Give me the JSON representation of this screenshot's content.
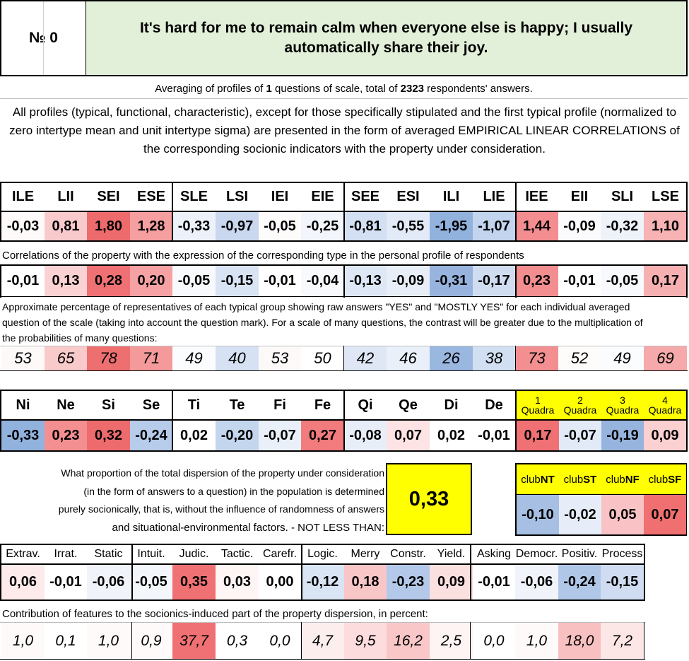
{
  "header": {
    "number_label": "№ 0",
    "question": "It's hard for me to remain calm when everyone else is happy; I usually automatically share their joy."
  },
  "averaging": {
    "prefix": "Averaging of profiles of ",
    "questions": "1",
    "middle": " questions of scale, total of ",
    "respondents": "2323",
    "suffix": " respondents' answers."
  },
  "intro_text": "All profiles (typical, functional, characteristic), except for those specifically stipulated and the first typical profile (normalized to zero intertype mean and unit intertype sigma) are presented in the form of averaged EMPIRICAL LINEAR CORRELATIONS of the corresponding socionic indicators with the property under consideration.",
  "types": {
    "labels": [
      "ILE",
      "LII",
      "SEI",
      "ESE",
      "SLE",
      "LSI",
      "IEI",
      "EIE",
      "SEE",
      "ESI",
      "ILI",
      "LIE",
      "IEE",
      "EII",
      "SLI",
      "LSE"
    ],
    "profile": [
      "-0,03",
      "0,81",
      "1,80",
      "1,28",
      "-0,33",
      "-0,97",
      "-0,05",
      "-0,25",
      "-0,81",
      "-0,55",
      "-1,95",
      "-1,07",
      "1,44",
      "-0,09",
      "-0,32",
      "1,10"
    ],
    "profile_colors": [
      "#fdfaf9",
      "#f9cacc",
      "#ee6b6d",
      "#f59fa1",
      "#edf2fa",
      "#c9d7ef",
      "#fefbfb",
      "#f2f5fb",
      "#d3e0f3",
      "#e1eaf6",
      "#92b2de",
      "#c3d4ee",
      "#f48d90",
      "#fbfbfd",
      "#eef3fa",
      "#f7b2b4"
    ],
    "correlation_caption": "Correlations of the property with the expression of the corresponding type in the personal profile of respondents",
    "correlation": [
      "-0,01",
      "0,13",
      "0,28",
      "0,20",
      "-0,05",
      "-0,15",
      "-0,01",
      "-0,04",
      "-0,13",
      "-0,09",
      "-0,31",
      "-0,17",
      "0,23",
      "-0,01",
      "-0,05",
      "0,17"
    ],
    "correlation_colors": [
      "#ffffff",
      "#fbd2d3",
      "#f07173",
      "#f6a1a3",
      "#f7f9fd",
      "#d8e3f3",
      "#ffffff",
      "#f7f9fd",
      "#dde7f5",
      "#e8eef8",
      "#98b4de",
      "#d0ddf1",
      "#f38e90",
      "#ffffff",
      "#f7f9fd",
      "#f7b0b2"
    ],
    "percent_caption": "Approximate percentage of representatives of each typical group showing raw answers \"YES\" and \"MOSTLY YES\" for each individual averaged question of the scale (taking into account the question mark). For a scale of many questions, the contrast will be greater due to the multiplication of the probabilities of many questions:",
    "percent": [
      "53",
      "65",
      "78",
      "71",
      "49",
      "40",
      "53",
      "50",
      "42",
      "46",
      "26",
      "38",
      "73",
      "52",
      "49",
      "69"
    ],
    "percent_colors": [
      "#fdf9f9",
      "#f9caca",
      "#ee6f70",
      "#f49a9b",
      "#fbfcfe",
      "#d6e2f3",
      "#fdf9f9",
      "#ffffff",
      "#dfe7f5",
      "#eaf0f9",
      "#9ab7df",
      "#d2dff2",
      "#f38f91",
      "#fefbfb",
      "#fbfcfe",
      "#f6a9aa"
    ]
  },
  "functions": {
    "labels": [
      "Ni",
      "Ne",
      "Si",
      "Se",
      "Ti",
      "Te",
      "Fi",
      "Fe",
      "Qi",
      "Qe",
      "Di",
      "De"
    ],
    "values": [
      "-0,33",
      "0,23",
      "0,32",
      "-0,24",
      "0,02",
      "-0,20",
      "-0,07",
      "0,27",
      "-0,08",
      "0,07",
      "0,02",
      "-0,01"
    ],
    "colors": [
      "#92b2de",
      "#f48f91",
      "#ee6b6d",
      "#b7cbea",
      "#ffffff",
      "#c4d5ee",
      "#eaf0f9",
      "#f17b7d",
      "#e8eef8",
      "#fde3e4",
      "#ffffff",
      "#ffffff"
    ]
  },
  "quadras": {
    "labels": [
      [
        "1",
        "Quadra"
      ],
      [
        "2",
        "Quadra"
      ],
      [
        "3",
        "Quadra"
      ],
      [
        "4",
        "Quadra"
      ]
    ],
    "values": [
      "0,17",
      "-0,07",
      "-0,19",
      "0,09"
    ],
    "colors": [
      "#f07174",
      "#e2eaf7",
      "#97b4de",
      "#fbd0d1"
    ],
    "header_color": "#ffff00"
  },
  "dispersion": {
    "text": [
      "What proportion of the total dispersion of the property under consideration",
      "(in the form of answers to a question) in the population is determined",
      "purely socionically, that is, without the influence of randomness of answers",
      "and situational-environmental factors. - NOT LESS THAN:"
    ],
    "value": "0,33",
    "box_color": "#ffff00"
  },
  "clubs": {
    "labels": [
      [
        "club",
        "NT"
      ],
      [
        "club",
        "ST"
      ],
      [
        "club",
        "NF"
      ],
      [
        "club",
        "SF"
      ]
    ],
    "values": [
      "-0,10",
      "-0,02",
      "0,05",
      "0,07"
    ],
    "colors": [
      "#a6bfe3",
      "#e6edf8",
      "#f9c3c5",
      "#f06f71"
    ],
    "header_color": "#ffff00"
  },
  "traits": {
    "labels": [
      "Extrav.",
      "Irrat.",
      "Static",
      "Intuit.",
      "Judic.",
      "Tactic.",
      "Carefr.",
      "Logic.",
      "Merry",
      "Constr.",
      "Yield.",
      "Asking",
      "Democr.",
      "Positiv.",
      "Process"
    ],
    "values": [
      "0,06",
      "-0,01",
      "-0,06",
      "-0,05",
      "0,35",
      "0,03",
      "0,00",
      "-0,12",
      "0,18",
      "-0,23",
      "0,09",
      "-0,01",
      "-0,06",
      "-0,24",
      "-0,15"
    ],
    "colors": [
      "#fdeaea",
      "#ffffff",
      "#f0f4fa",
      "#f3f6fb",
      "#f07173",
      "#fef5f5",
      "#ffffff",
      "#d9e4f4",
      "#f9c6c8",
      "#b4c9e9",
      "#fbe0e0",
      "#ffffff",
      "#f0f4fa",
      "#b1c7e8",
      "#cfdcf1"
    ],
    "contribution_caption": "Contribution of features to the socionics-induced part of the property dispersion, in percent:",
    "contribution": [
      "1,0",
      "0,1",
      "1,0",
      "0,9",
      "37,7",
      "0,3",
      "0,0",
      "4,7",
      "9,5",
      "16,2",
      "2,5",
      "0,0",
      "1,0",
      "18,0",
      "7,2"
    ],
    "contribution_colors": [
      "#fffafa",
      "#ffffff",
      "#fffafa",
      "#fffafa",
      "#f07173",
      "#ffffff",
      "#ffffff",
      "#fdeeee",
      "#fcdcdd",
      "#f9c7c8",
      "#fef4f4",
      "#ffffff",
      "#fffafa",
      "#f8c0c1",
      "#fde6e6"
    ]
  },
  "colors": {
    "question_bg": "#e2efd9",
    "border": "#000000"
  }
}
